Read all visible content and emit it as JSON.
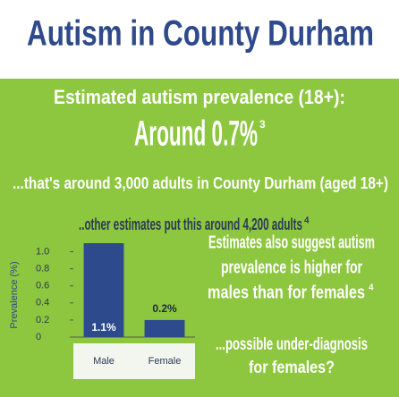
{
  "header": {
    "title": "Autism in County Durham"
  },
  "panel": {
    "line1": "Estimated autism prevalence (18+):",
    "line2": "Around 0.7%",
    "line2_ref": "3",
    "line3": "...that's around 3,000 adults in County Durham (aged 18+)",
    "line4": "..other estimates put this around 4,200 adults",
    "line4_ref": "4",
    "right1": [
      "Estimates also suggest autism",
      "prevalence is higher for",
      "males than for females"
    ],
    "right1_ref": "4",
    "right2": [
      "...possible under-diagnosis",
      "for females?"
    ]
  },
  "chart_data": {
    "type": "bar",
    "y_label": "Prevalence (%)",
    "categories": [
      "Male",
      "Female"
    ],
    "values": [
      1.1,
      0.2
    ],
    "value_labels": [
      "1.1%",
      "0.2%"
    ],
    "color": "#2c4a8c",
    "ylim": [
      0,
      1.1
    ],
    "yticks": [
      {
        "value": 0,
        "label": "0"
      },
      {
        "value": 0.2,
        "label": "0.2"
      },
      {
        "value": 0.4,
        "label": "0.4"
      },
      {
        "value": 0.6,
        "label": "0.6"
      },
      {
        "value": 0.8,
        "label": "0.8"
      },
      {
        "value": 1,
        "label": "1.0"
      }
    ]
  }
}
